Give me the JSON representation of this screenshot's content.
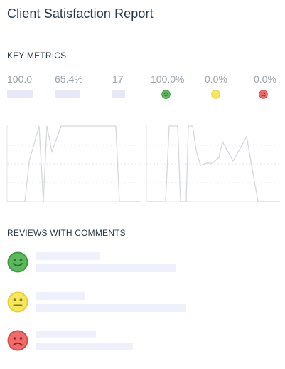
{
  "header": {
    "title": "Client Satisfaction Report"
  },
  "key_metrics": {
    "title": "KEY METRICS",
    "values": [
      {
        "label": "100.0"
      },
      {
        "label": "65.4%"
      },
      {
        "label": "17"
      },
      {
        "label": "100.0%",
        "face": "happy-face-icon",
        "color": "#5cb85c"
      },
      {
        "label": "0.0%",
        "face": "neutral-face-icon",
        "color": "#f5e65c"
      },
      {
        "label": "0.0%",
        "face": "sad-face-icon",
        "color": "#f26b6b"
      }
    ]
  },
  "reviews": {
    "title": "REVIEWS WITH COMMENTS",
    "items": [
      {
        "face": "happy-face-icon",
        "color": "#5cb85c"
      },
      {
        "face": "neutral-face-icon",
        "color": "#f5e65c"
      },
      {
        "face": "sad-face-icon",
        "color": "#f26b6b"
      }
    ]
  },
  "colors": {
    "line": "#d4d7de",
    "grid": "#e2e4e8",
    "skeleton": "#eef0fb",
    "metric_bar": "#e6e8f7"
  }
}
